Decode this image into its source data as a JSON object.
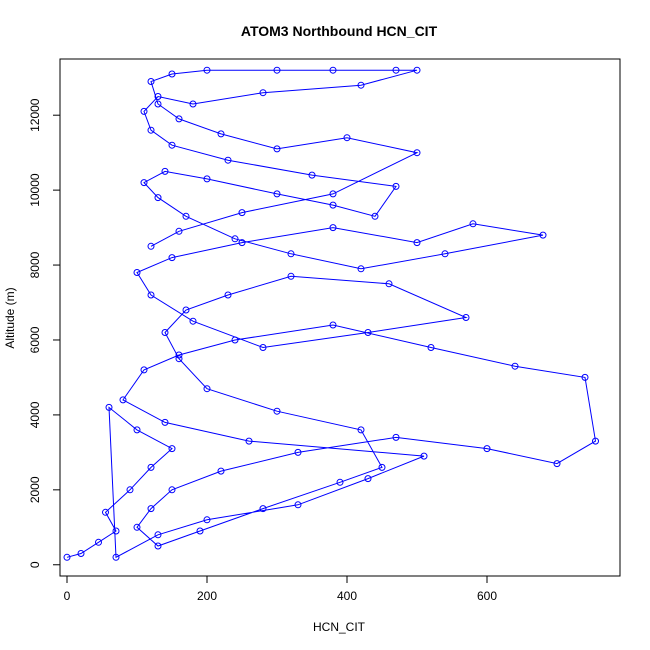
{
  "chart_data": {
    "type": "line",
    "title": "ATOM3 Northbound HCN_CIT",
    "xlabel": "HCN_CIT",
    "ylabel": "Altitude (m)",
    "xlim": [
      -10,
      790
    ],
    "ylim": [
      -300,
      13500
    ],
    "x_ticks": [
      0,
      200,
      400,
      600
    ],
    "y_ticks": [
      0,
      2000,
      4000,
      6000,
      8000,
      10000,
      12000
    ],
    "x_tick_labels": [
      "0",
      "200",
      "400",
      "600"
    ],
    "y_tick_labels": [
      "0",
      "2000",
      "4000",
      "6000",
      "8000",
      "10000",
      "12000"
    ],
    "grid": false,
    "marker": "open-circle",
    "series": [
      {
        "color": "#0000ff",
        "x": [
          0,
          20,
          45,
          70,
          55,
          90,
          120,
          150,
          100,
          60,
          70,
          130,
          200,
          330,
          430,
          510,
          260,
          140,
          80,
          110,
          160,
          240,
          380,
          520,
          640,
          740,
          755,
          700,
          600,
          470,
          330,
          220,
          150,
          120,
          100,
          130,
          190,
          280,
          390,
          450,
          420,
          300,
          200,
          160,
          140,
          170,
          230,
          320,
          460,
          570,
          430,
          280,
          180,
          120,
          100,
          150,
          250,
          380,
          500,
          580,
          680,
          540,
          420,
          320,
          240,
          170,
          130,
          110,
          140,
          200,
          300,
          380,
          440,
          470,
          350,
          230,
          150,
          120,
          110,
          130,
          180,
          280,
          420,
          500,
          470,
          380,
          300,
          200,
          150,
          120,
          130,
          160,
          220,
          300,
          400,
          500,
          380,
          250,
          160,
          120
        ],
        "y": [
          200,
          300,
          600,
          900,
          1400,
          2000,
          2600,
          3100,
          3600,
          4200,
          200,
          800,
          1200,
          1600,
          2300,
          2900,
          3300,
          3800,
          4400,
          5200,
          5600,
          6000,
          6400,
          5800,
          5300,
          5000,
          3300,
          2700,
          3100,
          3400,
          3000,
          2500,
          2000,
          1500,
          1000,
          500,
          900,
          1500,
          2200,
          2600,
          3600,
          4100,
          4700,
          5500,
          6200,
          6800,
          7200,
          7700,
          7500,
          6600,
          6200,
          5800,
          6500,
          7200,
          7800,
          8200,
          8600,
          9000,
          8600,
          9100,
          8800,
          8300,
          7900,
          8300,
          8700,
          9300,
          9800,
          10200,
          10500,
          10300,
          9900,
          9600,
          9300,
          10100,
          10400,
          10800,
          11200,
          11600,
          12100,
          12500,
          12300,
          12600,
          12800,
          13200,
          13200,
          13200,
          13200,
          13200,
          13100,
          12900,
          12300,
          11900,
          11500,
          11100,
          11400,
          11000,
          9900,
          9400,
          8900,
          8500
        ]
      }
    ]
  }
}
